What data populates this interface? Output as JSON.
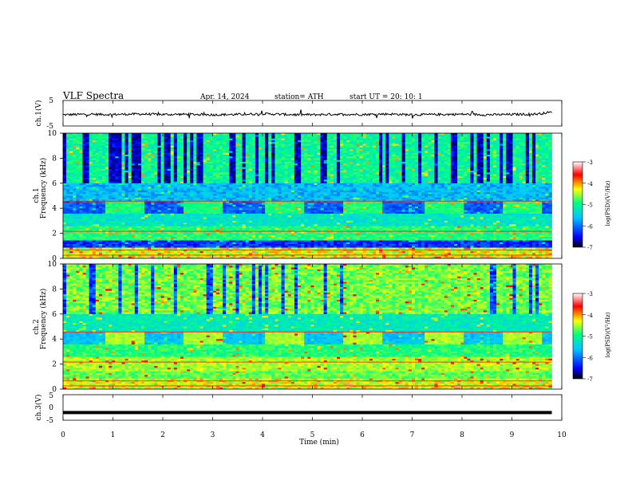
{
  "header": {
    "title": "VLF Spectra",
    "date": "Apr. 14, 2024",
    "station": "station= ATH",
    "start": "start UT = 20: 10: 1"
  },
  "colors": {
    "ch1_trace": "#000000",
    "ch3_trace": "#000000",
    "colormap": [
      "#000000",
      "#0000ff",
      "#00c8ff",
      "#00ff80",
      "#ffff00",
      "#ff0000",
      "#ffffff"
    ]
  },
  "chart_data": [
    {
      "type": "line",
      "ylabel": "ch.1(V)",
      "ylim": [
        -5,
        5
      ],
      "yticks": [
        "5",
        "-5"
      ],
      "x": [
        0,
        0.5,
        1,
        1.5,
        2,
        2.5,
        3,
        3.5,
        4,
        4.5,
        5,
        5.5,
        6,
        6.5,
        7,
        7.5,
        8,
        8.5,
        9,
        9.5,
        9.8
      ],
      "y": [
        -0.6,
        -0.4,
        -0.5,
        -0.3,
        -0.5,
        -0.4,
        -0.6,
        -0.5,
        -0.2,
        -0.5,
        -0.6,
        -0.4,
        -0.5,
        -0.3,
        -0.6,
        -0.5,
        -0.4,
        -0.6,
        -0.5,
        -0.3,
        0.4
      ]
    },
    {
      "type": "heatmap",
      "title": "ch.1",
      "ylabel": "Frequency (kHz)",
      "ylim": [
        0,
        10
      ],
      "yticks": [
        "0",
        "2",
        "4",
        "6",
        "8",
        "10"
      ],
      "xlim": [
        0,
        10
      ],
      "colorbar": {
        "label": "log(PSD)(V²/Hz)",
        "range": [
          -7,
          -3
        ],
        "ticks": [
          "-3",
          "-4",
          "-5",
          "-6",
          "-7"
        ]
      }
    },
    {
      "type": "heatmap",
      "title": "ch.2",
      "ylabel": "Frequency (kHz)",
      "ylim": [
        0,
        10
      ],
      "yticks": [
        "0",
        "2",
        "4",
        "6",
        "8",
        "10"
      ],
      "xlim": [
        0,
        10
      ],
      "colorbar": {
        "label": "log(PSD)(V²/Hz)",
        "range": [
          -7,
          -3
        ],
        "ticks": [
          "-3",
          "-4",
          "-5",
          "-6",
          "-7"
        ]
      }
    },
    {
      "type": "line",
      "ylabel": "ch.3(V)",
      "ylim": [
        -5,
        5
      ],
      "yticks": [
        "5",
        "0",
        "-5"
      ],
      "x": [
        0,
        9.8
      ],
      "y": [
        -2,
        -2
      ]
    }
  ],
  "xaxis": {
    "label": "Time (min)",
    "ticks": [
      "0",
      "1",
      "2",
      "3",
      "4",
      "5",
      "6",
      "7",
      "8",
      "9",
      "10"
    ],
    "range": [
      0,
      10
    ],
    "data_end": 9.8
  }
}
